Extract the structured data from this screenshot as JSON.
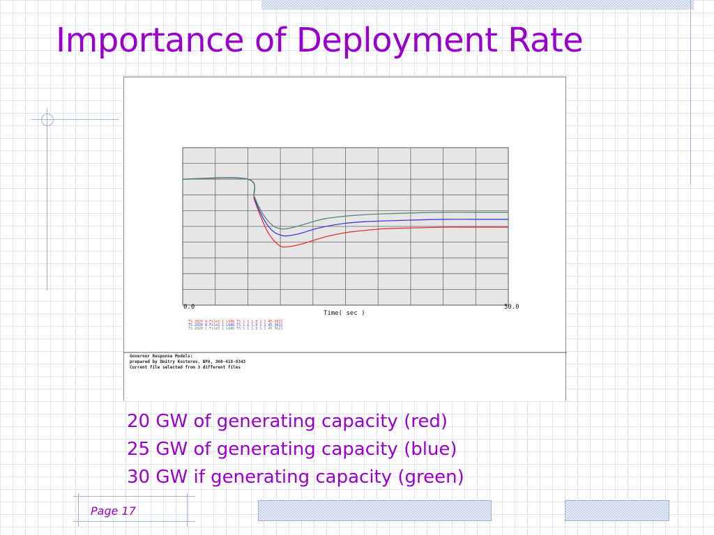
{
  "slide": {
    "title": "Importance of Deployment Rate",
    "page_label": "Page 17",
    "captions": [
      "20 GW of generating capacity (red)",
      "25 GW of generating capacity (blue)",
      "30 GW if generating capacity (green)"
    ]
  },
  "colors": {
    "title": "#9900cc",
    "red_series": "#e8322d",
    "blue_series": "#3b3bdc",
    "green_series": "#4f8a6f",
    "plot_background": "#e6e6e6"
  },
  "chart_data": {
    "type": "line",
    "title": "",
    "xlabel": "Time( sec )",
    "ylabel": "",
    "x_tick_labels": [
      "0.0",
      "50.0"
    ],
    "xlim": [
      0,
      50
    ],
    "ylim": [
      0,
      1
    ],
    "grid": true,
    "legend_lines": [
      "TS 2020 A  File1   1    LOAD TS 1   1    1.0  1  1  45 3621",
      "TS 2020 B  File2   1    LOAD TS 1   1    1.0  1  1  45 3621",
      "TS 2020 C  File3   1    LOAD TS 1   1    1.0  1  1  45 3621"
    ],
    "notes": [
      "Governor Response Models:",
      "prepared by Dmitry Kosterev, BPA, 360-418-8343",
      "Current file selected from 3 different files"
    ],
    "series": [
      {
        "name": "20 GW",
        "color": "red",
        "x": [
          0,
          10,
          11,
          12,
          13,
          14,
          15,
          16,
          18,
          20,
          22,
          25,
          28,
          31,
          35,
          40,
          45,
          50
        ],
        "y": [
          0.8,
          0.8,
          0.67,
          0.56,
          0.47,
          0.41,
          0.375,
          0.37,
          0.385,
          0.41,
          0.435,
          0.46,
          0.475,
          0.485,
          0.49,
          0.495,
          0.495,
          0.495
        ]
      },
      {
        "name": "25 GW",
        "color": "blue",
        "x": [
          0,
          10,
          11,
          12,
          13,
          14,
          15,
          16,
          18,
          20,
          22,
          25,
          28,
          31,
          35,
          40,
          45,
          50
        ],
        "y": [
          0.8,
          0.8,
          0.68,
          0.58,
          0.51,
          0.465,
          0.445,
          0.44,
          0.455,
          0.48,
          0.5,
          0.52,
          0.53,
          0.535,
          0.54,
          0.545,
          0.545,
          0.545
        ]
      },
      {
        "name": "30 GW",
        "color": "green",
        "x": [
          0,
          10,
          11,
          12,
          13,
          14,
          15,
          16,
          18,
          20,
          22,
          25,
          28,
          31,
          35,
          40,
          45,
          50
        ],
        "y": [
          0.8,
          0.8,
          0.69,
          0.6,
          0.54,
          0.5,
          0.485,
          0.485,
          0.505,
          0.53,
          0.55,
          0.565,
          0.575,
          0.58,
          0.585,
          0.59,
          0.59,
          0.59
        ]
      }
    ]
  }
}
